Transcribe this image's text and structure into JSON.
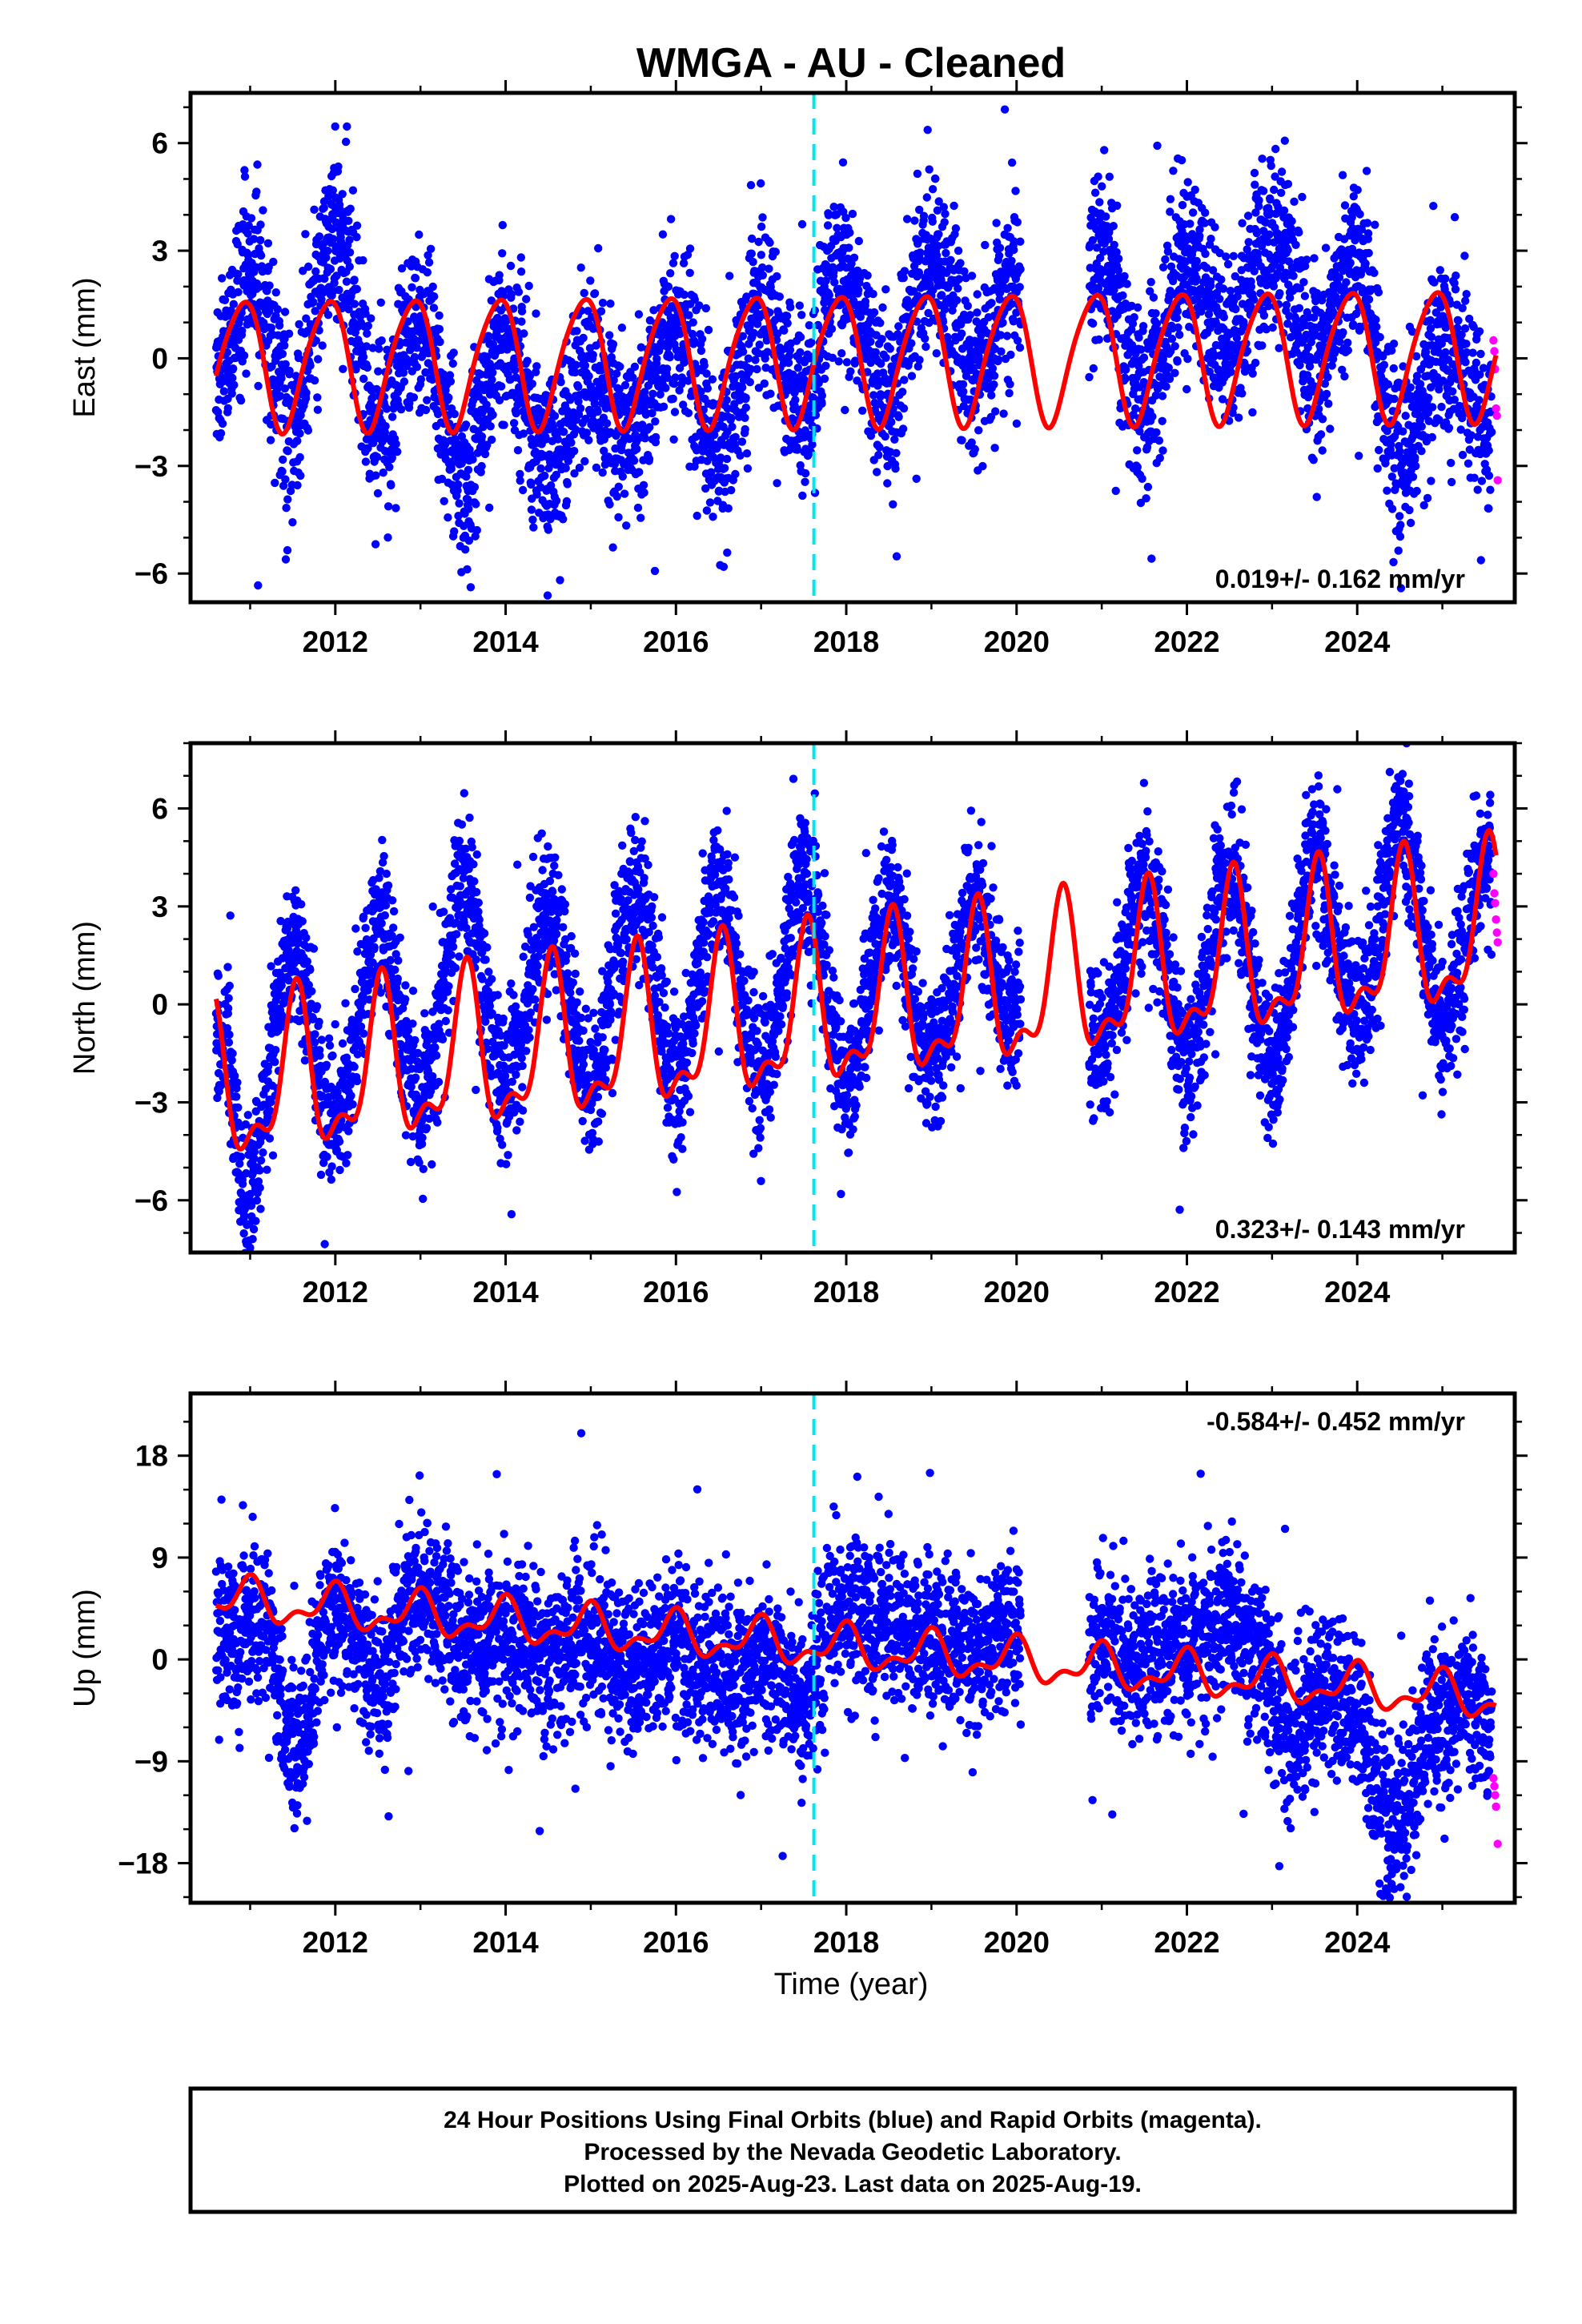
{
  "title": "WMGA  - AU - Cleaned",
  "xlabel": "Time (year)",
  "x_ticks": [
    "2012",
    "2014",
    "2016",
    "2018",
    "2020",
    "2022",
    "2024"
  ],
  "footer": {
    "line1": "24 Hour Positions Using Final Orbits (blue) and Rapid Orbits (magenta).",
    "line2": "Processed by the Nevada Geodetic Laboratory.",
    "line3": "Plotted on 2025-Aug-23. Last data on 2025-Aug-19."
  },
  "colors": {
    "final_orbits": "#0000ff",
    "rapid_orbits": "#ff00ff",
    "model": "#ff0000",
    "break_line": "#00e5ee",
    "frame": "#000000"
  },
  "chart_data": [
    {
      "type": "scatter",
      "panel": "east",
      "ylabel": "East (mm)",
      "rate_text": "0.019+/- 0.162 mm/yr",
      "rate_position": "bottom-right",
      "xlim": [
        2010.3,
        2025.85
      ],
      "ylim": [
        -6.8,
        7.4
      ],
      "y_ticks": [
        -6,
        -3,
        0,
        3,
        6
      ],
      "break_line_x": 2017.62,
      "data_span": [
        2010.6,
        2025.58
      ],
      "gap": [
        2020.05,
        2020.85
      ],
      "model": {
        "offset": 0.0,
        "trend": 0.019,
        "step_at": 2017.62,
        "step": 0.0,
        "annual_amp": 1.8,
        "annual_phase_day": 330,
        "semi_amp": 0.25,
        "semi_phase_day": 30,
        "noise": 1.2
      },
      "series": [
        {
          "name": "Final Orbits",
          "color": "#0000ff",
          "anchors": [
            [
              2010.7,
              -0.2
            ],
            [
              2011.0,
              2.5
            ],
            [
              2011.5,
              -1.5
            ],
            [
              2012.0,
              3.6
            ],
            [
              2012.5,
              -1.8
            ],
            [
              2013.0,
              0.9
            ],
            [
              2013.5,
              -3.3
            ],
            [
              2014.0,
              0.6
            ],
            [
              2014.5,
              -3.0
            ],
            [
              2015.0,
              -0.6
            ],
            [
              2015.5,
              -1.9
            ],
            [
              2016.0,
              1.0
            ],
            [
              2016.5,
              -2.6
            ],
            [
              2017.0,
              1.4
            ],
            [
              2017.5,
              -1.2
            ],
            [
              2017.9,
              2.6
            ],
            [
              2018.5,
              -0.9
            ],
            [
              2019.0,
              3.0
            ],
            [
              2019.5,
              -0.4
            ],
            [
              2020.0,
              2.5
            ],
            [
              2021.0,
              2.7
            ],
            [
              2021.5,
              -1.2
            ],
            [
              2022.0,
              2.8
            ],
            [
              2022.5,
              0.3
            ],
            [
              2023.0,
              3.3
            ],
            [
              2023.5,
              0.1
            ],
            [
              2024.0,
              2.8
            ],
            [
              2024.5,
              -2.8
            ],
            [
              2025.0,
              0.3
            ],
            [
              2025.55,
              -1.7
            ]
          ]
        },
        {
          "name": "Rapid Orbits",
          "color": "#ff00ff",
          "points": [
            [
              2025.6,
              0.5
            ],
            [
              2025.61,
              0.2
            ],
            [
              2025.62,
              -0.3
            ],
            [
              2025.63,
              -1.4
            ],
            [
              2025.64,
              -1.6
            ],
            [
              2025.65,
              -3.4
            ]
          ]
        }
      ]
    },
    {
      "type": "scatter",
      "panel": "north",
      "ylabel": "North (mm)",
      "rate_text": "0.323+/- 0.143 mm/yr",
      "rate_position": "bottom-right",
      "xlim": [
        2010.3,
        2025.85
      ],
      "ylim": [
        -7.6,
        8.0
      ],
      "y_ticks": [
        -6,
        -3,
        0,
        3,
        6
      ],
      "break_line_x": 2017.62,
      "data_span": [
        2010.6,
        2025.58
      ],
      "gap": [
        2020.05,
        2020.85
      ],
      "model": {
        "offset": -0.3,
        "trend": 0.323,
        "step_at": 2017.62,
        "step": 0.0,
        "annual_amp": 2.2,
        "annual_phase_day": 195,
        "semi_amp": 1.0,
        "semi_phase_day": 20,
        "noise": 1.1
      },
      "series": [
        {
          "name": "Final Orbits",
          "color": "#0000ff",
          "anchors": [
            [
              2010.7,
              -1.0
            ],
            [
              2010.95,
              -5.8
            ],
            [
              2011.5,
              1.8
            ],
            [
              2012.0,
              -3.6
            ],
            [
              2012.5,
              2.3
            ],
            [
              2013.0,
              -2.8
            ],
            [
              2013.5,
              3.6
            ],
            [
              2014.0,
              -2.4
            ],
            [
              2014.5,
              2.9
            ],
            [
              2015.0,
              -2.6
            ],
            [
              2015.5,
              3.4
            ],
            [
              2016.0,
              -2.1
            ],
            [
              2016.5,
              3.6
            ],
            [
              2017.0,
              -2.1
            ],
            [
              2017.5,
              3.8
            ],
            [
              2018.0,
              -2.3
            ],
            [
              2018.5,
              3.1
            ],
            [
              2019.0,
              -1.6
            ],
            [
              2019.5,
              3.0
            ],
            [
              2020.0,
              -0.6
            ],
            [
              2021.0,
              -1.2
            ],
            [
              2021.5,
              4.0
            ],
            [
              2022.0,
              -1.7
            ],
            [
              2022.5,
              4.2
            ],
            [
              2023.0,
              -1.9
            ],
            [
              2023.5,
              4.4
            ],
            [
              2024.0,
              -0.6
            ],
            [
              2024.5,
              5.6
            ],
            [
              2025.0,
              -0.4
            ],
            [
              2025.55,
              4.6
            ]
          ]
        },
        {
          "name": "Rapid Orbits",
          "color": "#ff00ff",
          "points": [
            [
              2025.6,
              4.0
            ],
            [
              2025.61,
              3.4
            ],
            [
              2025.62,
              3.1
            ],
            [
              2025.63,
              2.6
            ],
            [
              2025.64,
              2.2
            ],
            [
              2025.65,
              1.9
            ]
          ]
        }
      ]
    },
    {
      "type": "scatter",
      "panel": "up",
      "ylabel": "Up (mm)",
      "rate_text": "-0.584+/- 0.452 mm/yr",
      "rate_position": "top-right",
      "xlim": [
        2010.3,
        2025.85
      ],
      "ylim": [
        -21.5,
        23.5
      ],
      "y_ticks": [
        -18,
        -9,
        0,
        9,
        18
      ],
      "break_line_x": 2017.62,
      "data_span": [
        2010.6,
        2025.58
      ],
      "gap": [
        2020.05,
        2020.85
      ],
      "model": {
        "offset": 1.0,
        "trend": -0.584,
        "step_at": 2017.62,
        "step": 0.0,
        "annual_amp": 1.6,
        "annual_phase_day": 355,
        "semi_amp": 0.9,
        "semi_phase_day": 10,
        "noise": 3.4
      },
      "series": [
        {
          "name": "Final Orbits",
          "color": "#0000ff",
          "anchors": [
            [
              2010.7,
              2.0
            ],
            [
              2011.2,
              3.0
            ],
            [
              2011.5,
              -7.5
            ],
            [
              2012.0,
              5.0
            ],
            [
              2012.5,
              -1.0
            ],
            [
              2013.0,
              6.5
            ],
            [
              2013.5,
              1.0
            ],
            [
              2014.0,
              2.5
            ],
            [
              2014.5,
              0.0
            ],
            [
              2015.0,
              2.5
            ],
            [
              2015.5,
              -1.0
            ],
            [
              2016.0,
              1.0
            ],
            [
              2016.5,
              -1.5
            ],
            [
              2017.0,
              0.0
            ],
            [
              2017.5,
              -3.5
            ],
            [
              2017.9,
              4.5
            ],
            [
              2018.5,
              3.0
            ],
            [
              2019.0,
              2.5
            ],
            [
              2019.5,
              1.0
            ],
            [
              2020.0,
              3.5
            ],
            [
              2021.0,
              1.5
            ],
            [
              2021.5,
              0.0
            ],
            [
              2022.0,
              1.5
            ],
            [
              2022.4,
              4.0
            ],
            [
              2022.8,
              1.0
            ],
            [
              2023.2,
              -6.5
            ],
            [
              2023.6,
              -2.5
            ],
            [
              2024.0,
              -5.0
            ],
            [
              2024.3,
              -14.0
            ],
            [
              2024.6,
              -13.0
            ],
            [
              2024.9,
              -5.0
            ],
            [
              2025.3,
              -3.0
            ],
            [
              2025.55,
              -6.5
            ]
          ]
        },
        {
          "name": "Rapid Orbits",
          "color": "#ff00ff",
          "points": [
            [
              2025.6,
              -10.5
            ],
            [
              2025.61,
              -11.2
            ],
            [
              2025.62,
              -12.0
            ],
            [
              2025.63,
              -13.0
            ],
            [
              2025.65,
              -16.3
            ]
          ]
        }
      ]
    }
  ]
}
